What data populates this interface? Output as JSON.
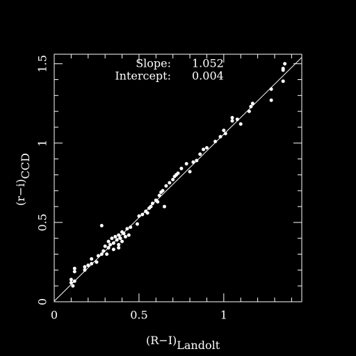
{
  "chart_data": {
    "type": "scatter",
    "x_label": "(R−I)",
    "x_label_sub": "Landolt",
    "y_label": "(r−i)",
    "y_label_sub": "CCD",
    "fit": {
      "slope_label": "Slope:",
      "slope": 1.052,
      "intercept_label": "Intercept:",
      "intercept": 0.004
    },
    "xlim": [
      0,
      1.46
    ],
    "ylim": [
      0,
      1.56
    ],
    "xticks": [
      0,
      0.5,
      1
    ],
    "yticks": [
      0,
      0.5,
      1,
      1.5
    ],
    "xticks_minor": [
      0.1,
      0.2,
      0.3,
      0.4,
      0.6,
      0.7,
      0.8,
      0.9,
      1.1,
      1.2,
      1.3,
      1.4
    ],
    "yticks_minor": [
      0.1,
      0.2,
      0.3,
      0.4,
      0.6,
      0.7,
      0.8,
      0.9,
      1.1,
      1.2,
      1.3,
      1.4
    ],
    "series": [
      {
        "color": "#ffffff",
        "x": [
          0.1,
          0.1,
          0.11,
          0.12,
          0.12,
          0.12,
          0.18,
          0.18,
          0.2,
          0.22,
          0.22,
          0.25,
          0.26,
          0.28,
          0.29,
          0.3,
          0.31,
          0.32,
          0.32,
          0.33,
          0.34,
          0.35,
          0.35,
          0.36,
          0.37,
          0.38,
          0.38,
          0.39,
          0.4,
          0.4,
          0.41,
          0.42,
          0.43,
          0.44,
          0.45,
          0.28,
          0.38,
          0.49,
          0.5,
          0.52,
          0.54,
          0.55,
          0.56,
          0.57,
          0.58,
          0.6,
          0.61,
          0.62,
          0.63,
          0.64,
          0.65,
          0.66,
          0.68,
          0.7,
          0.71,
          0.72,
          0.73,
          0.75,
          0.78,
          0.8,
          0.82,
          0.84,
          0.86,
          0.88,
          0.9,
          0.95,
          0.98,
          1.0,
          1.01,
          1.05,
          1.05,
          1.08,
          1.1,
          1.15,
          1.16,
          1.17,
          1.28,
          1.28,
          1.35,
          1.35,
          1.35,
          1.36
        ],
        "values": [
          0.12,
          0.14,
          0.1,
          0.13,
          0.19,
          0.21,
          0.2,
          0.22,
          0.23,
          0.24,
          0.27,
          0.25,
          0.29,
          0.3,
          0.32,
          0.35,
          0.3,
          0.34,
          0.38,
          0.36,
          0.4,
          0.37,
          0.33,
          0.41,
          0.39,
          0.42,
          0.36,
          0.4,
          0.44,
          0.38,
          0.43,
          0.41,
          0.46,
          0.42,
          0.47,
          0.48,
          0.34,
          0.49,
          0.54,
          0.55,
          0.57,
          0.56,
          0.59,
          0.6,
          0.62,
          0.64,
          0.63,
          0.67,
          0.69,
          0.7,
          0.6,
          0.73,
          0.75,
          0.77,
          0.79,
          0.8,
          0.81,
          0.84,
          0.87,
          0.82,
          0.88,
          0.89,
          0.93,
          0.96,
          0.97,
          1.01,
          1.04,
          1.08,
          1.06,
          1.14,
          1.16,
          1.15,
          1.12,
          1.2,
          1.23,
          1.25,
          1.34,
          1.27,
          1.39,
          1.46,
          1.47,
          1.5
        ]
      }
    ]
  }
}
